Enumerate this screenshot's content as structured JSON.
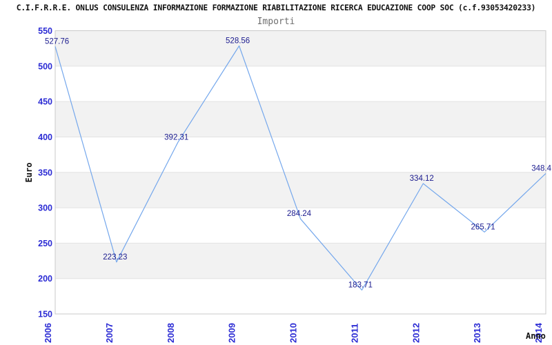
{
  "header": {
    "title": "C.I.F.R.R.E. ONLUS CONSULENZA INFORMAZIONE FORMAZIONE RIABILITAZIONE RICERCA EDUCAZIONE COOP SOC (c.f.93053420233)",
    "subtitle": "Importi"
  },
  "chart_data": {
    "type": "line",
    "title": "Importi",
    "xlabel": "Anno",
    "ylabel": "Euro",
    "categories": [
      "2006",
      "2007",
      "2008",
      "2009",
      "2010",
      "2011",
      "2012",
      "2013",
      "2014"
    ],
    "values": [
      527.76,
      223.23,
      392.31,
      528.56,
      284.24,
      183.71,
      334.12,
      265.71,
      348.4
    ],
    "value_labels": [
      "527.76",
      "223.23",
      "392.31",
      "528.56",
      "284.24",
      "183.71",
      "334.12",
      "265.71",
      "348.4"
    ],
    "ylim": [
      150,
      550
    ],
    "yticks": [
      150,
      200,
      250,
      300,
      350,
      400,
      450,
      500,
      550
    ],
    "grid": "alternating horizontal bands, boundary lines at each 50-unit tick",
    "legend": "none",
    "colors": {
      "line": "#74a7ec",
      "tick_label": "#2b2bd4",
      "value_label": "#1b1b8e",
      "band_gray": "#f2f2f2",
      "band_white": "#ffffff",
      "grid_line": "#e2e2e2",
      "plot_border": "#c9c9c9",
      "title": "#111111",
      "subtitle": "#6e6e6e",
      "axis_title": "#111111",
      "background": "#ffffff"
    }
  }
}
